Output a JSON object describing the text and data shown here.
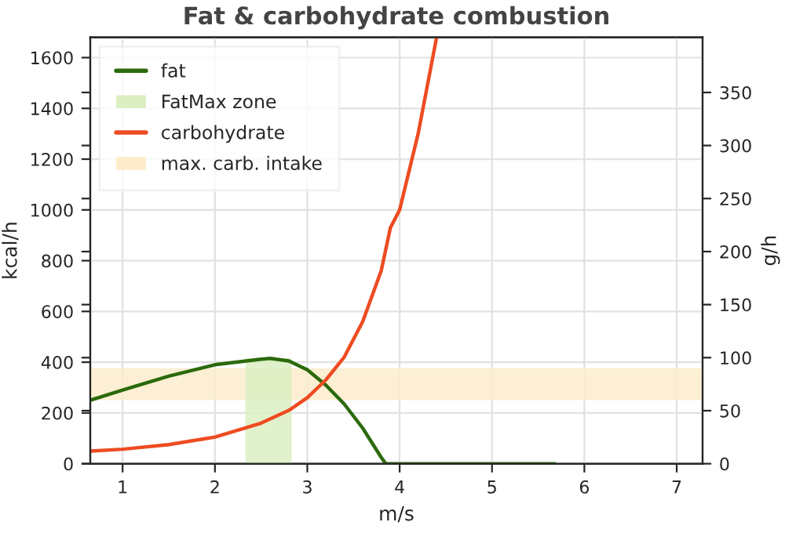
{
  "chart_data": {
    "type": "line",
    "title": "Fat & carbohydrate combustion",
    "xlabel": "m/s",
    "ylabel": "kcal/h",
    "y2label": "g/h",
    "series": [
      {
        "name": "fat",
        "color": "#2b6a0c",
        "x": [
          0.65,
          1,
          1.5,
          2,
          2.5,
          2.6,
          2.8,
          3.0,
          3.2,
          3.4,
          3.6,
          3.8,
          3.85,
          5.68
        ],
        "values": [
          250,
          290,
          345,
          390,
          412,
          415,
          405,
          370,
          310,
          235,
          140,
          25,
          0,
          0
        ]
      },
      {
        "name": "carbohydrate",
        "color": "#ee4b22",
        "x": [
          0.65,
          1,
          1.5,
          2,
          2.5,
          2.8,
          3.0,
          3.2,
          3.4,
          3.6,
          3.8,
          3.9,
          4.0,
          4.2,
          4.4
        ],
        "values": [
          50,
          57,
          75,
          105,
          160,
          210,
          260,
          330,
          420,
          560,
          760,
          930,
          1000,
          1300,
          1680
        ]
      }
    ],
    "bands": [
      {
        "axis": "x",
        "from": 2.33,
        "to": 2.83,
        "label": "FatMax zone",
        "color": "#dcefc2"
      },
      {
        "axis": "y2",
        "from": 60,
        "to": 90,
        "label": "max. carb. intake",
        "color": "#fdeccb"
      }
    ],
    "xlim": [
      0.65,
      7.28
    ],
    "xticks": [
      1,
      2,
      3,
      4,
      5,
      6,
      7
    ],
    "ylim": [
      0,
      1680
    ],
    "yticks": [
      0,
      200,
      400,
      600,
      800,
      1000,
      1200,
      1400,
      1600
    ],
    "y2lim": [
      0,
      402
    ],
    "y2ticks": [
      0,
      50,
      100,
      150,
      200,
      250,
      300,
      350
    ],
    "grid": true,
    "legend": "top left"
  }
}
